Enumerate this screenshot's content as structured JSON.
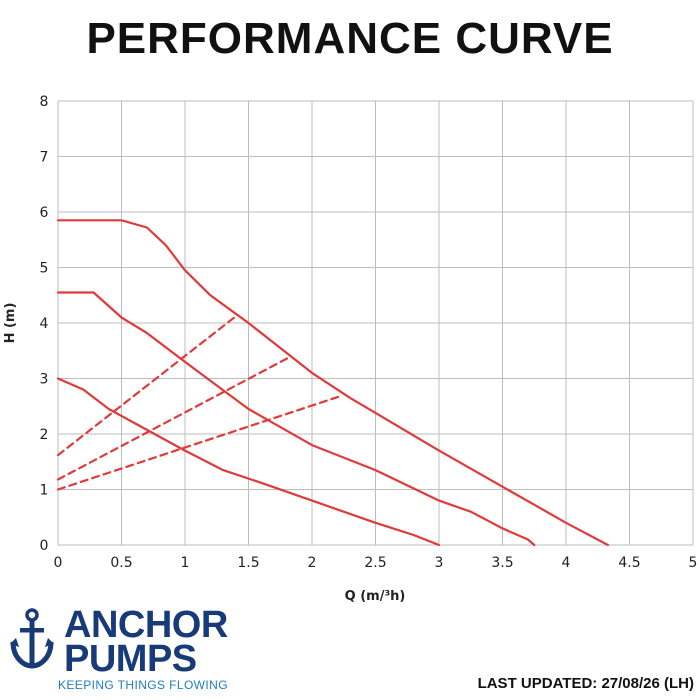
{
  "title": "PERFORMANCE CURVE",
  "colors": {
    "curve": "#e03a3a",
    "grid": "#bdbdbd",
    "brand_dark": "#173a78",
    "brand_light": "#1c7fc4"
  },
  "chart_data": {
    "type": "line",
    "title": "PERFORMANCE CURVE",
    "xlabel": "Q (m/³h)",
    "ylabel": "H (m)",
    "xlim": [
      0,
      5
    ],
    "ylim": [
      0,
      8
    ],
    "grid": true,
    "x_ticks": [
      "0",
      "0.5",
      "1",
      "1.5",
      "2",
      "2.5",
      "3",
      "3.5",
      "4",
      "4.5",
      "5"
    ],
    "y_ticks": [
      "0",
      "1",
      "2",
      "3",
      "4",
      "5",
      "6",
      "7",
      "8"
    ],
    "series": [
      {
        "style": "solid",
        "points": [
          [
            0,
            5.85
          ],
          [
            0.5,
            5.85
          ],
          [
            0.7,
            5.72
          ],
          [
            0.85,
            5.4
          ],
          [
            1.0,
            4.95
          ],
          [
            1.2,
            4.5
          ],
          [
            1.5,
            4.0
          ],
          [
            2.0,
            3.1
          ],
          [
            2.3,
            2.65
          ],
          [
            2.5,
            2.38
          ],
          [
            3.0,
            1.7
          ],
          [
            3.5,
            1.05
          ],
          [
            4.0,
            0.4
          ],
          [
            4.33,
            0.0
          ]
        ]
      },
      {
        "style": "solid",
        "points": [
          [
            0,
            4.55
          ],
          [
            0.28,
            4.55
          ],
          [
            0.5,
            4.1
          ],
          [
            0.7,
            3.82
          ],
          [
            1.0,
            3.3
          ],
          [
            1.5,
            2.45
          ],
          [
            2.0,
            1.8
          ],
          [
            2.5,
            1.35
          ],
          [
            3.0,
            0.8
          ],
          [
            3.25,
            0.6
          ],
          [
            3.5,
            0.3
          ],
          [
            3.7,
            0.1
          ],
          [
            3.75,
            0.0
          ]
        ]
      },
      {
        "style": "solid",
        "points": [
          [
            0,
            3.0
          ],
          [
            0.2,
            2.8
          ],
          [
            0.4,
            2.45
          ],
          [
            0.6,
            2.2
          ],
          [
            1.0,
            1.7
          ],
          [
            1.3,
            1.35
          ],
          [
            1.6,
            1.12
          ],
          [
            2.0,
            0.8
          ],
          [
            2.5,
            0.4
          ],
          [
            2.8,
            0.18
          ],
          [
            3.0,
            0.0
          ]
        ]
      },
      {
        "style": "dashed",
        "points": [
          [
            0,
            1.62
          ],
          [
            1.4,
            4.12
          ]
        ]
      },
      {
        "style": "dashed",
        "points": [
          [
            0,
            1.18
          ],
          [
            1.82,
            3.38
          ]
        ]
      },
      {
        "style": "dashed",
        "points": [
          [
            0,
            1.0
          ],
          [
            2.22,
            2.68
          ]
        ]
      }
    ]
  },
  "logo": {
    "line1": "ANCHOR",
    "line2": "PUMPS",
    "tagline": "KEEPING THINGS FLOWING"
  },
  "footer": {
    "updated": "LAST UPDATED: 27/08/26 (LH)"
  }
}
